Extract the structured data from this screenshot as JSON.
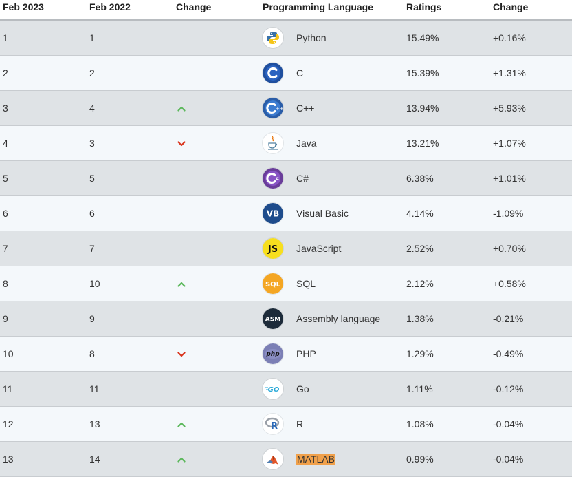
{
  "headers": [
    "Feb 2023",
    "Feb 2022",
    "Change",
    "Programming Language",
    "Ratings",
    "Change"
  ],
  "rows": [
    {
      "cur": "1",
      "prev": "1",
      "trend": "none",
      "lang": "Python",
      "icon": "python-logo-icon",
      "rating": "15.49%",
      "change": "+0.16%"
    },
    {
      "cur": "2",
      "prev": "2",
      "trend": "none",
      "lang": "C",
      "icon": "c-logo-icon",
      "rating": "15.39%",
      "change": "+1.31%"
    },
    {
      "cur": "3",
      "prev": "4",
      "trend": "up",
      "lang": "C++",
      "icon": "cpp-logo-icon",
      "rating": "13.94%",
      "change": "+5.93%"
    },
    {
      "cur": "4",
      "prev": "3",
      "trend": "down",
      "lang": "Java",
      "icon": "java-logo-icon",
      "rating": "13.21%",
      "change": "+1.07%"
    },
    {
      "cur": "5",
      "prev": "5",
      "trend": "none",
      "lang": "C#",
      "icon": "csharp-logo-icon",
      "rating": "6.38%",
      "change": "+1.01%"
    },
    {
      "cur": "6",
      "prev": "6",
      "trend": "none",
      "lang": "Visual Basic",
      "icon": "vb-logo-icon",
      "rating": "4.14%",
      "change": "-1.09%"
    },
    {
      "cur": "7",
      "prev": "7",
      "trend": "none",
      "lang": "JavaScript",
      "icon": "js-logo-icon",
      "rating": "2.52%",
      "change": "+0.70%"
    },
    {
      "cur": "8",
      "prev": "10",
      "trend": "up",
      "lang": "SQL",
      "icon": "sql-logo-icon",
      "rating": "2.12%",
      "change": "+0.58%"
    },
    {
      "cur": "9",
      "prev": "9",
      "trend": "none",
      "lang": "Assembly language",
      "icon": "asm-logo-icon",
      "rating": "1.38%",
      "change": "-0.21%"
    },
    {
      "cur": "10",
      "prev": "8",
      "trend": "down",
      "lang": "PHP",
      "icon": "php-logo-icon",
      "rating": "1.29%",
      "change": "-0.49%"
    },
    {
      "cur": "11",
      "prev": "11",
      "trend": "none",
      "lang": "Go",
      "icon": "go-logo-icon",
      "rating": "1.11%",
      "change": "-0.12%"
    },
    {
      "cur": "12",
      "prev": "13",
      "trend": "up",
      "lang": "R",
      "icon": "r-logo-icon",
      "rating": "1.08%",
      "change": "-0.04%"
    },
    {
      "cur": "13",
      "prev": "14",
      "trend": "up",
      "lang": "MATLAB",
      "icon": "matlab-logo-icon",
      "rating": "0.99%",
      "change": "-0.04%",
      "highlight": "#f0a04a"
    }
  ],
  "colors": {
    "row_odd": "#dfe3e6",
    "row_even": "#f4f8fb",
    "up": "#5cb85c",
    "down": "#d9341c"
  }
}
